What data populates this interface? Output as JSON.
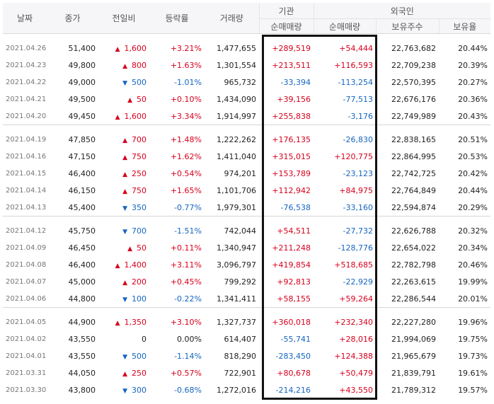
{
  "headers": {
    "date": "날짜",
    "close": "종가",
    "change": "전일비",
    "rate": "등락률",
    "volume": "거래량",
    "institution": "기관",
    "foreign": "외국인",
    "inst_net": "순매매량",
    "foreign_net": "순매매량",
    "holdings": "보유주수",
    "ratio": "보유율"
  },
  "colors": {
    "up": "#d6001c",
    "down": "#1565c0",
    "highlight_box": "#111111"
  },
  "groups": [
    [
      {
        "date": "2021.04.26",
        "close": "51,400",
        "dir": "up",
        "change": "1,600",
        "rate": "+3.21%",
        "volume": "1,477,655",
        "inst": "+289,519",
        "foreign": "+54,444",
        "holdings": "22,763,682",
        "ratio": "20.44%"
      },
      {
        "date": "2021.04.23",
        "close": "49,800",
        "dir": "up",
        "change": "800",
        "rate": "+1.63%",
        "volume": "1,301,554",
        "inst": "+213,511",
        "foreign": "+116,593",
        "holdings": "22,709,238",
        "ratio": "20.39%"
      },
      {
        "date": "2021.04.22",
        "close": "49,000",
        "dir": "down",
        "change": "500",
        "rate": "-1.01%",
        "volume": "965,732",
        "inst": "-33,394",
        "foreign": "-113,254",
        "holdings": "22,570,395",
        "ratio": "20.27%"
      },
      {
        "date": "2021.04.21",
        "close": "49,500",
        "dir": "up",
        "change": "50",
        "rate": "+0.10%",
        "volume": "1,434,090",
        "inst": "+39,156",
        "foreign": "-77,513",
        "holdings": "22,676,176",
        "ratio": "20.36%"
      },
      {
        "date": "2021.04.20",
        "close": "49,450",
        "dir": "up",
        "change": "1,600",
        "rate": "+3.34%",
        "volume": "1,914,997",
        "inst": "+255,838",
        "foreign": "-3,176",
        "holdings": "22,749,989",
        "ratio": "20.43%"
      }
    ],
    [
      {
        "date": "2021.04.19",
        "close": "47,850",
        "dir": "up",
        "change": "700",
        "rate": "+1.48%",
        "volume": "1,222,262",
        "inst": "+176,135",
        "foreign": "-26,830",
        "holdings": "22,838,165",
        "ratio": "20.51%"
      },
      {
        "date": "2021.04.16",
        "close": "47,150",
        "dir": "up",
        "change": "750",
        "rate": "+1.62%",
        "volume": "1,411,040",
        "inst": "+315,015",
        "foreign": "+120,775",
        "holdings": "22,864,995",
        "ratio": "20.53%"
      },
      {
        "date": "2021.04.15",
        "close": "46,400",
        "dir": "up",
        "change": "250",
        "rate": "+0.54%",
        "volume": "974,201",
        "inst": "+153,789",
        "foreign": "-23,123",
        "holdings": "22,742,725",
        "ratio": "20.42%"
      },
      {
        "date": "2021.04.14",
        "close": "46,150",
        "dir": "up",
        "change": "750",
        "rate": "+1.65%",
        "volume": "1,101,706",
        "inst": "+112,942",
        "foreign": "+84,975",
        "holdings": "22,764,849",
        "ratio": "20.44%"
      },
      {
        "date": "2021.04.13",
        "close": "45,400",
        "dir": "down",
        "change": "350",
        "rate": "-0.77%",
        "volume": "1,979,301",
        "inst": "-76,538",
        "foreign": "-33,160",
        "holdings": "22,594,874",
        "ratio": "20.29%"
      }
    ],
    [
      {
        "date": "2021.04.12",
        "close": "45,750",
        "dir": "down",
        "change": "700",
        "rate": "-1.51%",
        "volume": "742,044",
        "inst": "+54,511",
        "foreign": "-27,732",
        "holdings": "22,626,788",
        "ratio": "20.32%"
      },
      {
        "date": "2021.04.09",
        "close": "46,450",
        "dir": "up",
        "change": "50",
        "rate": "+0.11%",
        "volume": "1,340,947",
        "inst": "+211,248",
        "foreign": "-128,776",
        "holdings": "22,654,022",
        "ratio": "20.34%"
      },
      {
        "date": "2021.04.08",
        "close": "46,400",
        "dir": "up",
        "change": "1,400",
        "rate": "+3.11%",
        "volume": "3,096,797",
        "inst": "+419,854",
        "foreign": "+518,685",
        "holdings": "22,782,798",
        "ratio": "20.46%"
      },
      {
        "date": "2021.04.07",
        "close": "45,000",
        "dir": "up",
        "change": "200",
        "rate": "+0.45%",
        "volume": "799,292",
        "inst": "+92,813",
        "foreign": "-22,929",
        "holdings": "22,263,615",
        "ratio": "19.99%"
      },
      {
        "date": "2021.04.06",
        "close": "44,800",
        "dir": "down",
        "change": "100",
        "rate": "-0.22%",
        "volume": "1,341,411",
        "inst": "+58,155",
        "foreign": "+59,264",
        "holdings": "22,286,544",
        "ratio": "20.01%"
      }
    ],
    [
      {
        "date": "2021.04.05",
        "close": "44,900",
        "dir": "up",
        "change": "1,350",
        "rate": "+3.10%",
        "volume": "1,327,737",
        "inst": "+360,018",
        "foreign": "+232,340",
        "holdings": "22,227,280",
        "ratio": "19.96%"
      },
      {
        "date": "2021.04.02",
        "close": "43,550",
        "dir": "flat",
        "change": "0",
        "rate": "0.00%",
        "volume": "614,407",
        "inst": "-55,741",
        "foreign": "+28,016",
        "holdings": "21,994,069",
        "ratio": "19.75%"
      },
      {
        "date": "2021.04.01",
        "close": "43,550",
        "dir": "down",
        "change": "500",
        "rate": "-1.14%",
        "volume": "818,290",
        "inst": "-283,450",
        "foreign": "+124,388",
        "holdings": "21,965,679",
        "ratio": "19.73%"
      },
      {
        "date": "2021.03.31",
        "close": "44,050",
        "dir": "up",
        "change": "250",
        "rate": "+0.57%",
        "volume": "722,901",
        "inst": "+80,678",
        "foreign": "+50,479",
        "holdings": "21,839,791",
        "ratio": "19.61%"
      },
      {
        "date": "2021.03.30",
        "close": "43,800",
        "dir": "down",
        "change": "300",
        "rate": "-0.68%",
        "volume": "1,272,016",
        "inst": "-214,216",
        "foreign": "+43,550",
        "holdings": "21,789,312",
        "ratio": "19.57%"
      }
    ]
  ]
}
